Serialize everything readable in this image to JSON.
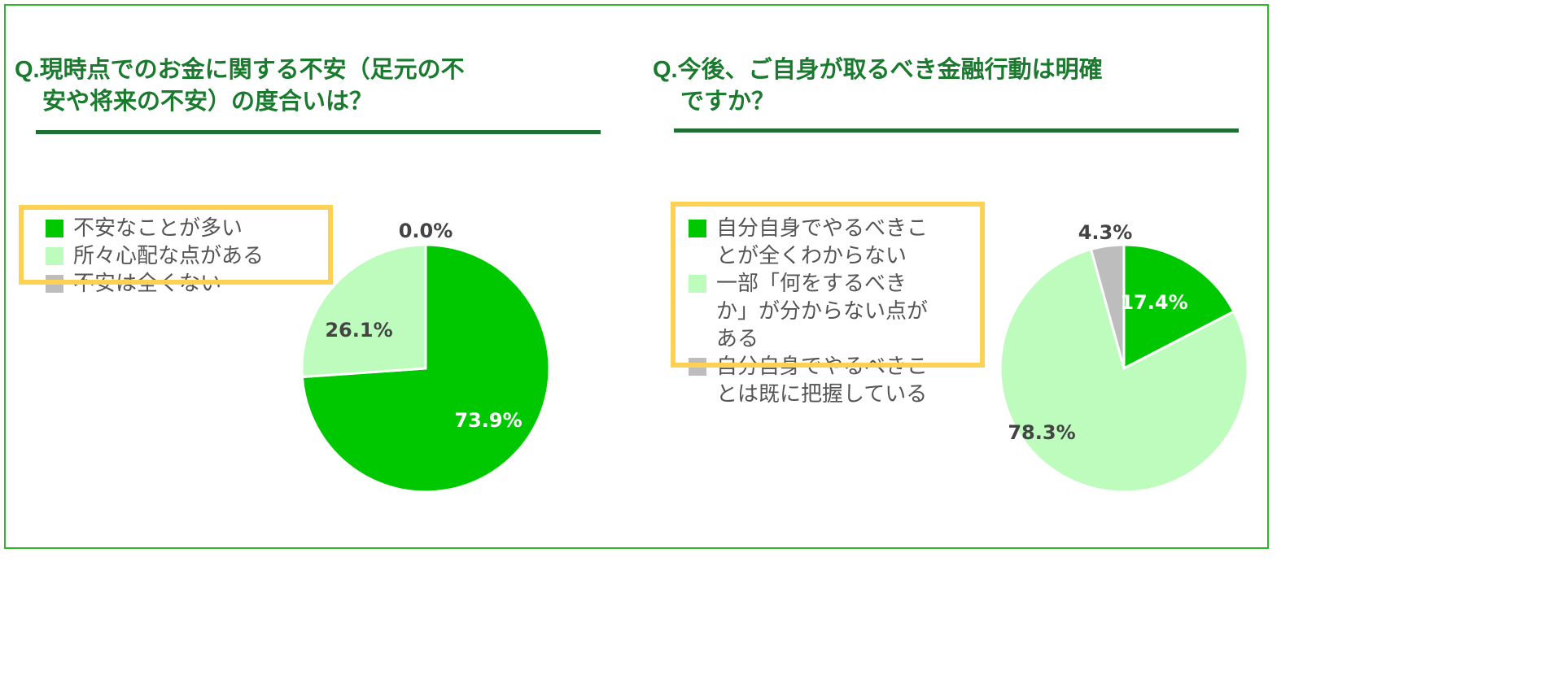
{
  "colors": {
    "frame_border": "#2eb82e",
    "title": "#1a7a2e",
    "rule": "#1f6e33",
    "highlight": "#fcd154",
    "legend_text": "#555555",
    "dark_label": "#444444",
    "white_label": "#ffffff"
  },
  "chart_data": [
    {
      "type": "pie",
      "title_lines": [
        "Q.現時点でのお金に関する不安（足元の不",
        "安や将来の不安）の度合いは？"
      ],
      "categories": [
        "不安なことが多い",
        "所々心配な点がある",
        "不安は全くない"
      ],
      "values": [
        73.9,
        26.1,
        0.0
      ],
      "labels": [
        "73.9%",
        "26.1%",
        "0.0%"
      ],
      "colors": [
        "#00c800",
        "#bdfcbd",
        "#bdbdbd"
      ],
      "legend_lines": [
        [
          "不安なことが多い"
        ],
        [
          "所々心配な点がある"
        ],
        [
          "不安は全くない"
        ]
      ],
      "legend": "left",
      "highlighted_legend_items": 2
    },
    {
      "type": "pie",
      "title_lines": [
        "Q.今後、ご自身が取るべき金融行動は明確",
        "ですか？"
      ],
      "categories": [
        "自分自身でやるべきことが全くわからない",
        "一部「何をするべきか」が分からない点がある",
        "自分自身でやるべきことは既に把握している"
      ],
      "values": [
        17.4,
        78.3,
        4.3
      ],
      "labels": [
        "17.4%",
        "78.3%",
        "4.3%"
      ],
      "colors": [
        "#00c800",
        "#bdfcbd",
        "#bdbdbd"
      ],
      "legend_lines": [
        [
          "自分自身でやるべきこ",
          "とが全くわからない"
        ],
        [
          "一部「何をするべき",
          "か」が分からない点が",
          "ある"
        ],
        [
          "自分自身でやるべきこ",
          "とは既に把握している"
        ]
      ],
      "legend": "left",
      "highlighted_legend_items": 2
    }
  ]
}
